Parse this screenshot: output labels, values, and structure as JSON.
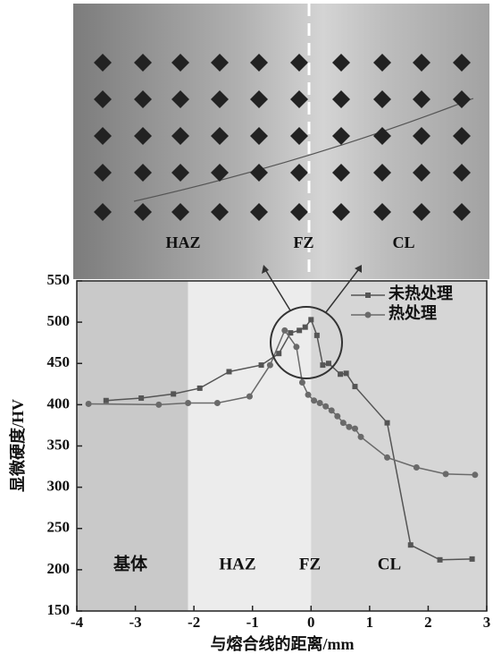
{
  "micrograph": {
    "labels": [
      "HAZ",
      "FZ",
      "CL"
    ]
  },
  "chart_data": {
    "type": "line",
    "xlabel": "与熔合线的距离/mm",
    "ylabel": "显微硬度/HV",
    "xlim": [
      -4,
      3
    ],
    "xticks": [
      -4,
      -3,
      -2,
      -1,
      0,
      1,
      2,
      3
    ],
    "ylim": [
      150,
      550
    ],
    "yticks": [
      150,
      200,
      250,
      300,
      350,
      400,
      450,
      500,
      550
    ],
    "legend": "upper right",
    "regions": [
      {
        "label": "基体",
        "from": -4,
        "to": -2.1,
        "color": "#c9c9c9"
      },
      {
        "label": "HAZ",
        "from": -2.1,
        "to": 0,
        "color": "#ececec"
      },
      {
        "label": "FZ",
        "from": 0,
        "to": 3,
        "color": "#d6d6d6"
      },
      {
        "label": "CL"
      }
    ],
    "series": [
      {
        "name": "未热处理",
        "color": "#555555",
        "marker": "square",
        "x": [
          -3.5,
          -2.9,
          -2.35,
          -1.9,
          -1.4,
          -0.85,
          -0.55,
          -0.35,
          -0.2,
          -0.1,
          0,
          0.1,
          0.2,
          0.3,
          0.5,
          0.6,
          0.75,
          1.3,
          1.7,
          2.2,
          2.75
        ],
        "values": [
          405,
          408,
          413,
          420,
          440,
          448,
          462,
          487,
          490,
          494,
          503,
          484,
          448,
          450,
          437,
          438,
          422,
          378,
          230,
          212,
          213
        ]
      },
      {
        "name": "热处理",
        "color": "#6a6a6a",
        "marker": "circle",
        "x": [
          -3.8,
          -2.6,
          -2.1,
          -1.6,
          -1.05,
          -0.7,
          -0.45,
          -0.25,
          -0.15,
          -0.05,
          0.05,
          0.15,
          0.25,
          0.35,
          0.45,
          0.55,
          0.65,
          0.75,
          0.85,
          1.3,
          1.8,
          2.3,
          2.8
        ],
        "values": [
          401,
          400,
          402,
          402,
          410,
          448,
          490,
          470,
          427,
          412,
          405,
          402,
          398,
          393,
          386,
          378,
          373,
          371,
          361,
          336,
          324,
          316,
          315
        ]
      }
    ]
  }
}
